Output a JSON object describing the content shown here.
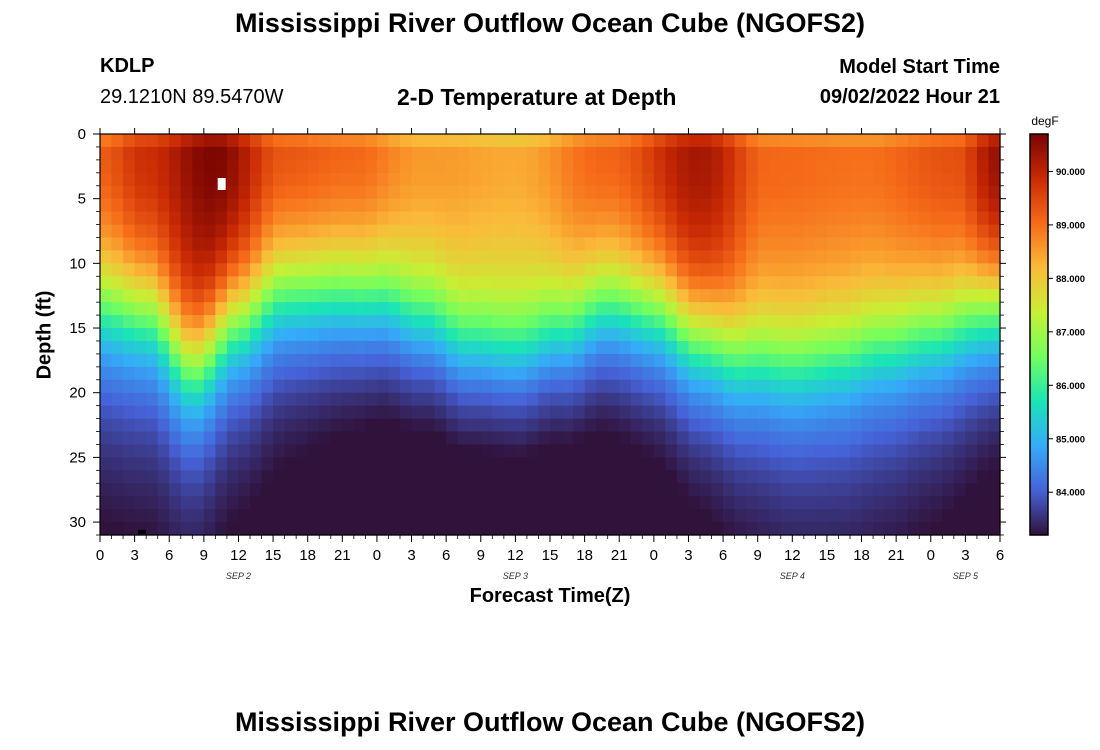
{
  "header": {
    "title": "Mississippi River Outflow Ocean Cube (NGOFS2)",
    "station_id": "KDLP",
    "station_location": "29.1210N  89.5470W",
    "subtitle": "2-D Temperature at Depth",
    "model_start_label": "Model Start Time",
    "model_start_value": "09/02/2022 Hour 21"
  },
  "footer": {
    "title": "Mississippi River Outflow Ocean Cube (NGOFS2)"
  },
  "colors": {
    "colormap": [
      "#30123b",
      "#4662d8",
      "#35abf8",
      "#1ae4b6",
      "#72fe5e",
      "#c8ef34",
      "#faba39",
      "#f66b19",
      "#ca2a04",
      "#7a0403"
    ]
  },
  "chart_data": {
    "type": "heatmap",
    "title": "2-D Temperature at Depth",
    "xlabel": "Forecast Time(Z)",
    "ylabel": "Depth (ft)",
    "x_ticks": [
      "0",
      "3",
      "6",
      "9",
      "12",
      "15",
      "18",
      "21",
      "0",
      "3",
      "6",
      "9",
      "12",
      "15",
      "18",
      "21",
      "0",
      "3",
      "6",
      "9",
      "12",
      "15",
      "18",
      "21",
      "0",
      "3",
      "6"
    ],
    "date_labels": [
      {
        "text": "SEP 2",
        "hour": 12
      },
      {
        "text": "SEP 3",
        "hour": 36
      },
      {
        "text": "SEP 4",
        "hour": 60
      },
      {
        "text": "SEP 5",
        "hour": 75
      }
    ],
    "x_range_hours": [
      0,
      78
    ],
    "y_ticks": [
      0,
      5,
      10,
      15,
      20,
      25,
      30
    ],
    "ylim_ft": [
      0,
      31
    ],
    "colorbar": {
      "unit": "degF",
      "range": [
        83.2,
        90.7
      ],
      "ticks": [
        "84.000",
        "85.000",
        "86.000",
        "87.000",
        "88.000",
        "89.000",
        "90.000"
      ]
    },
    "grid": {
      "time_step_hours": 1,
      "depth_step_ft": 1
    },
    "surface_profile_hours": [
      0,
      4,
      10,
      16,
      22,
      28,
      36,
      44,
      52,
      58,
      66,
      74,
      78
    ],
    "surface_profile_degF": [
      89.3,
      89.9,
      90.7,
      89.4,
      89.2,
      88.6,
      88.4,
      89.2,
      90.3,
      89.1,
      89.0,
      89.4,
      90.5
    ],
    "thermocline_profile_hours": [
      0,
      4,
      8,
      12,
      16,
      20,
      24,
      28,
      32,
      36,
      40,
      44,
      48,
      52,
      56,
      60,
      64,
      68,
      72,
      78
    ],
    "thermocline_depth_ft": [
      13.5,
      14.0,
      18.0,
      14.5,
      12.5,
      12.5,
      12.8,
      14.5,
      16.5,
      17.0,
      15.5,
      13.5,
      14.0,
      16.0,
      17.5,
      18.0,
      17.5,
      16.5,
      15.5,
      13.5
    ]
  }
}
